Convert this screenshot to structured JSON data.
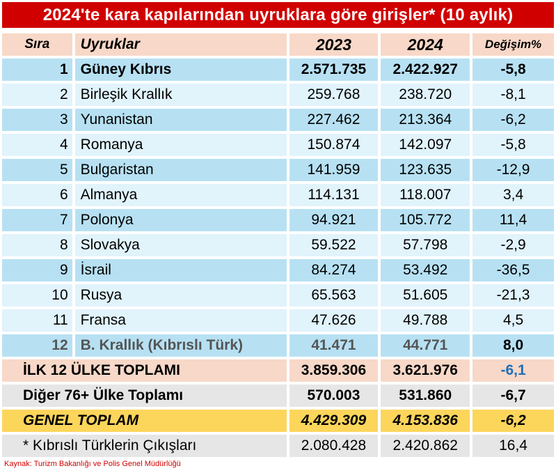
{
  "title": "2024'te kara kapılarından uyruklara göre girişler* (10 aylık)",
  "headers": {
    "rank": "Sıra",
    "nationality": "Uyruklar",
    "y2023": "2023",
    "y2024": "2024",
    "change": "Değişim%"
  },
  "rows": [
    {
      "rank": "1",
      "name": "Güney Kıbrıs",
      "y2023": "2.571.735",
      "y2024": "2.422.927",
      "change": "-5,8"
    },
    {
      "rank": "2",
      "name": "Birleşik Krallık",
      "y2023": "259.768",
      "y2024": "238.720",
      "change": "-8,1"
    },
    {
      "rank": "3",
      "name": "Yunanistan",
      "y2023": "227.462",
      "y2024": "213.364",
      "change": "-6,2"
    },
    {
      "rank": "4",
      "name": "Romanya",
      "y2023": "150.874",
      "y2024": "142.097",
      "change": "-5,8"
    },
    {
      "rank": "5",
      "name": "Bulgaristan",
      "y2023": "141.959",
      "y2024": "123.635",
      "change": "-12,9"
    },
    {
      "rank": "6",
      "name": "Almanya",
      "y2023": "114.131",
      "y2024": "118.007",
      "change": "3,4"
    },
    {
      "rank": "7",
      "name": "Polonya",
      "y2023": "94.921",
      "y2024": "105.772",
      "change": "11,4"
    },
    {
      "rank": "8",
      "name": "Slovakya",
      "y2023": "59.522",
      "y2024": "57.798",
      "change": "-2,9"
    },
    {
      "rank": "9",
      "name": "İsrail",
      "y2023": "84.274",
      "y2024": "53.492",
      "change": "-36,5"
    },
    {
      "rank": "10",
      "name": "Rusya",
      "y2023": "65.563",
      "y2024": "51.605",
      "change": "-21,3"
    },
    {
      "rank": "11",
      "name": "Fransa",
      "y2023": "47.626",
      "y2024": "49.788",
      "change": "4,5"
    },
    {
      "rank": "12",
      "name": "B. Krallık (Kıbrıslı Türk)",
      "y2023": "41.471",
      "y2024": "44.771",
      "change": "8,0"
    }
  ],
  "totals": {
    "top12": {
      "label": "İLK 12 ÜLKE TOPLAMI",
      "y2023": "3.859.306",
      "y2024": "3.621.976",
      "change": "-6,1"
    },
    "other": {
      "label": "Diğer 76+ Ülke Toplamı",
      "y2023": "570.003",
      "y2024": "531.860",
      "change": "-6,7"
    },
    "grand": {
      "label": "GENEL TOPLAM",
      "y2023": "4.429.309",
      "y2024": "4.153.836",
      "change": "-6,2"
    },
    "cypriot": {
      "label": "* Kıbrıslı Türklerin Çıkışları",
      "y2023": "2.080.428",
      "y2024": "2.420.862",
      "change": "16,4"
    }
  },
  "source": "Kaynak: Turizm Bakanlığı ve Polis Genel Müdürlüğü",
  "colors": {
    "title_bg": "#d00000",
    "header_bg": "#f8d8c8",
    "row_blue": "#b7e1f3",
    "row_light": "#e1f3fb",
    "grand_bg": "#fcd55b",
    "total_text": "#1f6fb8",
    "cypriot_text": "#e01010"
  }
}
